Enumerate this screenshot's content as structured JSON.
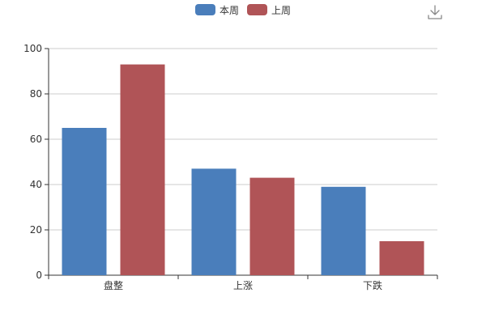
{
  "chart_data": {
    "type": "bar",
    "title": "",
    "xlabel": "",
    "ylabel": "",
    "categories": [
      "盘整",
      "上涨",
      "下跌"
    ],
    "series": [
      {
        "name": "本周",
        "color": "#4a7ebb",
        "values": [
          65,
          47,
          39
        ]
      },
      {
        "name": "上周",
        "color": "#b05457",
        "values": [
          93,
          43,
          15
        ]
      }
    ],
    "ylim": [
      0,
      100
    ],
    "yticks": [
      0,
      20,
      40,
      60,
      80,
      100
    ],
    "grid": true,
    "legend_position": "top-center"
  },
  "toolbar": {
    "download_icon": "download-icon"
  }
}
